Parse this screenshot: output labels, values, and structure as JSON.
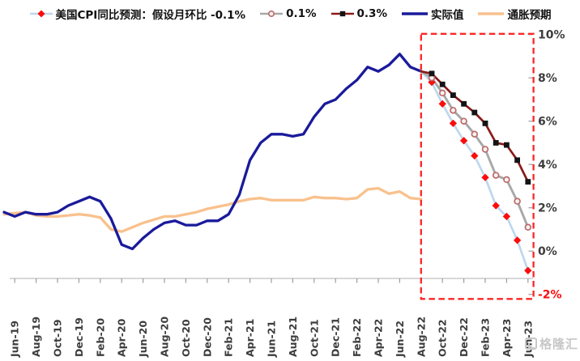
{
  "legend": {
    "items": [
      {
        "key": "pm01",
        "swatch": "diamond",
        "label": "美国CPI同比预测：假设月环比 -0.1%"
      },
      {
        "key": "p01",
        "swatch": "circle",
        "label": "0.1%"
      },
      {
        "key": "p03",
        "swatch": "square",
        "label": "0.3%"
      },
      {
        "key": "actual",
        "swatch": "line",
        "label": "实际值"
      },
      {
        "key": "expectation",
        "swatch": "line",
        "label": "通胀预期"
      }
    ]
  },
  "watermark": {
    "logo": "G",
    "text": "格隆汇"
  },
  "colors": {
    "actual": "#1a1a9c",
    "expectation": "#f9c18d",
    "p03_line": "#8a1a1a",
    "p03_marker": "#141414",
    "p01_line": "#a8a8a8",
    "p01_marker_stroke": "#bc6a6a",
    "p01_marker_fill": "#f7f2f2",
    "pm01_line": "#bdd7ee",
    "pm01_marker": "#fb0d0d",
    "highlight_box": "#fb2626",
    "axis_line": "#c0c0c0",
    "tick": "#9c9c9c",
    "label": "#3d3d3d",
    "negative_label": "#fb0d0d",
    "watermark": "#c7c7c7"
  },
  "chart_data": {
    "type": "line",
    "x_start_month": "May-19",
    "x_tick_labels": [
      "Jun-19",
      "Aug-19",
      "Oct-19",
      "Dec-19",
      "Feb-20",
      "Apr-20",
      "Jun-20",
      "Aug-20",
      "Oct-20",
      "Dec-20",
      "Feb-21",
      "Apr-21",
      "Jun-21",
      "Aug-21",
      "Oct-21",
      "Dec-21",
      "Feb-22",
      "Apr-22",
      "Jun-22",
      "Aug-22",
      "Oct-22",
      "Dec-22",
      "Feb-23",
      "Apr-23",
      "Jun-23"
    ],
    "ylim": [
      -2,
      10
    ],
    "y_ticks": [
      10,
      8,
      6,
      4,
      2,
      0,
      -2
    ],
    "y_tick_labels": [
      "10%",
      "8%",
      "6%",
      "4%",
      "2%",
      "0%",
      "-2%"
    ],
    "grid": false,
    "legend_position": "top",
    "highlight_box": {
      "from_label": "Aug-22",
      "to_label": "Jun-23",
      "style": "red-dashed"
    },
    "series": [
      {
        "key": "actual",
        "name": "实际值",
        "start_index": 0,
        "marker": "none",
        "values": [
          1.8,
          1.6,
          1.8,
          1.7,
          1.7,
          1.8,
          2.1,
          2.3,
          2.5,
          2.3,
          1.5,
          0.3,
          0.1,
          0.6,
          1.0,
          1.3,
          1.4,
          1.2,
          1.2,
          1.4,
          1.4,
          1.7,
          2.6,
          4.2,
          5.0,
          5.4,
          5.4,
          5.3,
          5.4,
          6.2,
          6.8,
          7.0,
          7.5,
          7.9,
          8.5,
          8.3,
          8.6,
          9.1,
          8.5,
          8.3
        ]
      },
      {
        "key": "expectation",
        "name": "通胀预期",
        "start_index": 0,
        "marker": "none",
        "values": [
          1.7,
          1.75,
          1.8,
          1.65,
          1.6,
          1.6,
          1.65,
          1.7,
          1.65,
          1.55,
          1.0,
          0.9,
          1.1,
          1.3,
          1.45,
          1.6,
          1.6,
          1.7,
          1.8,
          1.95,
          2.05,
          2.15,
          2.3,
          2.4,
          2.45,
          2.35,
          2.35,
          2.35,
          2.35,
          2.5,
          2.45,
          2.45,
          2.4,
          2.45,
          2.85,
          2.9,
          2.65,
          2.75,
          2.45,
          2.4
        ]
      },
      {
        "key": "pm01",
        "name": "美国CPI同比预测：假设月环比 -0.1%",
        "start_index": 39,
        "marker": "diamond",
        "values": [
          8.3,
          7.8,
          6.8,
          5.9,
          5.1,
          4.4,
          3.4,
          2.1,
          1.6,
          0.5,
          -0.9
        ]
      },
      {
        "key": "p01",
        "name": "0.1%",
        "start_index": 39,
        "marker": "circle",
        "values": [
          8.3,
          8.0,
          7.3,
          6.5,
          6.0,
          5.4,
          4.7,
          3.5,
          3.3,
          2.3,
          1.1
        ]
      },
      {
        "key": "p03",
        "name": "0.3%",
        "start_index": 39,
        "marker": "square",
        "values": [
          8.3,
          8.2,
          7.7,
          7.2,
          6.8,
          6.4,
          5.9,
          5.0,
          4.9,
          4.2,
          3.2
        ]
      }
    ]
  }
}
